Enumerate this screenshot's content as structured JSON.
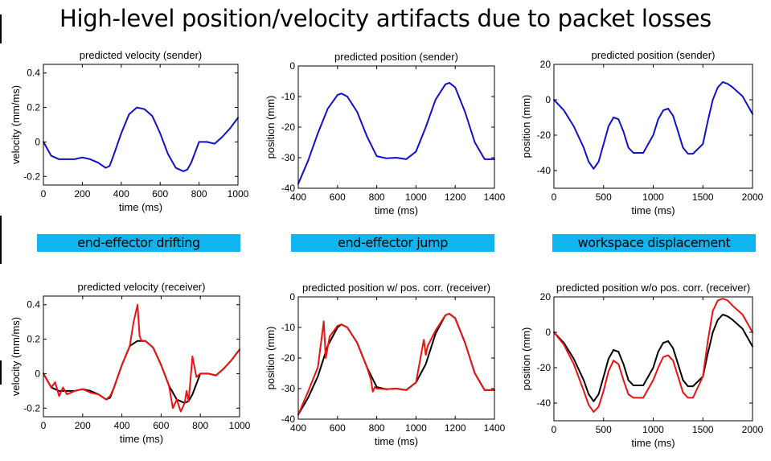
{
  "title": "High-level position/velocity artifacts due to packet losses",
  "banners": [
    "end-effector drifting",
    "end-effector jump",
    "workspace displacement"
  ],
  "colors": {
    "sender": "#1010cc",
    "receiver": "#ee1111",
    "reference": "#000000",
    "banner": "#10b4ee"
  },
  "chart_data": [
    {
      "type": "line",
      "title": "predicted velocity (sender)",
      "xlabel": "time (ms)",
      "ylabel": "velocity (mm/ms)",
      "xlim": [
        0,
        1000
      ],
      "ylim": [
        -0.25,
        0.45
      ],
      "xticks": [
        0,
        200,
        400,
        600,
        800,
        1000
      ],
      "yticks": [
        -0.2,
        0,
        0.2,
        0.4
      ],
      "series": [
        {
          "color": "blue",
          "x": [
            0,
            40,
            80,
            120,
            160,
            200,
            240,
            280,
            320,
            340,
            360,
            400,
            440,
            480,
            520,
            560,
            600,
            640,
            680,
            720,
            740,
            760,
            800,
            840,
            880,
            920,
            960,
            1000
          ],
          "y": [
            0,
            -0.08,
            -0.1,
            -0.1,
            -0.1,
            -0.09,
            -0.1,
            -0.12,
            -0.15,
            -0.14,
            -0.08,
            0.05,
            0.16,
            0.2,
            0.19,
            0.15,
            0.05,
            -0.07,
            -0.15,
            -0.17,
            -0.16,
            -0.12,
            0,
            0,
            -0.01,
            0.03,
            0.08,
            0.14
          ]
        }
      ]
    },
    {
      "type": "line",
      "title": "predicted position (sender)",
      "xlabel": "time (ms)",
      "ylabel": "position (mm)",
      "xlim": [
        400,
        1400
      ],
      "ylim": [
        -40,
        0
      ],
      "xticks": [
        400,
        600,
        800,
        1000,
        1200,
        1400
      ],
      "yticks": [
        -40,
        -30,
        -20,
        -10,
        0
      ],
      "series": [
        {
          "color": "blue",
          "x": [
            400,
            450,
            500,
            550,
            600,
            620,
            650,
            700,
            750,
            800,
            850,
            900,
            950,
            1000,
            1050,
            1100,
            1150,
            1170,
            1200,
            1250,
            1300,
            1350,
            1400
          ],
          "y": [
            -38.5,
            -31,
            -22,
            -14,
            -9.5,
            -9,
            -10,
            -15,
            -23,
            -29.5,
            -30.2,
            -30,
            -30.5,
            -28,
            -20,
            -11,
            -6,
            -5.5,
            -7,
            -15,
            -25,
            -30.5,
            -30.5
          ]
        }
      ]
    },
    {
      "type": "line",
      "title": "predicted position (sender)",
      "xlabel": "time (ms)",
      "ylabel": "position (mm)",
      "xlim": [
        0,
        2000
      ],
      "ylim": [
        -50,
        20
      ],
      "xticks": [
        0,
        500,
        1000,
        1500,
        2000
      ],
      "yticks": [
        -40,
        -20,
        0,
        20
      ],
      "series": [
        {
          "color": "blue",
          "x": [
            0,
            100,
            200,
            300,
            350,
            400,
            450,
            500,
            550,
            600,
            650,
            700,
            750,
            800,
            900,
            1000,
            1050,
            1100,
            1150,
            1200,
            1250,
            1300,
            1350,
            1400,
            1500,
            1550,
            1600,
            1650,
            1700,
            1750,
            1800,
            1900,
            2000
          ],
          "y": [
            0,
            -6,
            -15,
            -27,
            -35,
            -39,
            -35,
            -25,
            -15,
            -10,
            -11,
            -18,
            -27,
            -30,
            -30,
            -20,
            -11,
            -6,
            -5,
            -9,
            -18,
            -27,
            -30.5,
            -30.5,
            -25,
            -12,
            0,
            7,
            10,
            9,
            7,
            2,
            -8
          ]
        }
      ]
    },
    {
      "type": "line",
      "title": "predicted velocity (receiver)",
      "xlabel": "time (ms)",
      "ylabel": "velocity (mm/ms)",
      "xlim": [
        0,
        1000
      ],
      "ylim": [
        -0.25,
        0.45
      ],
      "xticks": [
        0,
        200,
        400,
        600,
        800,
        1000
      ],
      "yticks": [
        -0.2,
        0,
        0.2,
        0.4
      ],
      "series": [
        {
          "color": "black",
          "x": [
            0,
            40,
            80,
            120,
            160,
            200,
            240,
            280,
            320,
            340,
            360,
            400,
            440,
            480,
            520,
            560,
            600,
            640,
            680,
            720,
            740,
            760,
            800,
            840,
            880,
            920,
            960,
            1000
          ],
          "y": [
            0,
            -0.08,
            -0.1,
            -0.1,
            -0.1,
            -0.09,
            -0.1,
            -0.12,
            -0.15,
            -0.14,
            -0.08,
            0.05,
            0.16,
            0.19,
            0.19,
            0.15,
            0.05,
            -0.07,
            -0.15,
            -0.17,
            -0.16,
            -0.12,
            0,
            0,
            -0.01,
            0.03,
            0.08,
            0.14
          ]
        },
        {
          "color": "red",
          "x": [
            0,
            40,
            60,
            80,
            100,
            120,
            160,
            200,
            240,
            280,
            320,
            340,
            360,
            400,
            440,
            460,
            480,
            490,
            500,
            520,
            560,
            600,
            640,
            660,
            680,
            700,
            720,
            730,
            740,
            760,
            780,
            800,
            840,
            880,
            920,
            960,
            1000
          ],
          "y": [
            0,
            -0.08,
            -0.05,
            -0.13,
            -0.08,
            -0.12,
            -0.1,
            -0.09,
            -0.11,
            -0.12,
            -0.15,
            -0.13,
            -0.08,
            0.05,
            0.16,
            0.3,
            0.4,
            0.22,
            0.19,
            0.19,
            0.15,
            0.05,
            -0.07,
            -0.2,
            -0.15,
            -0.22,
            -0.17,
            -0.1,
            -0.16,
            0.1,
            -0.02,
            0,
            0,
            -0.01,
            0.03,
            0.08,
            0.14
          ]
        }
      ]
    },
    {
      "type": "line",
      "title": "predicted position w/ pos. corr. (receiver)",
      "xlabel": "time (ms)",
      "ylabel": "position (mm)",
      "xlim": [
        400,
        1400
      ],
      "ylim": [
        -40,
        0
      ],
      "xticks": [
        400,
        600,
        800,
        1000,
        1200,
        1400
      ],
      "yticks": [
        -40,
        -30,
        -20,
        -10,
        0
      ],
      "series": [
        {
          "color": "black",
          "x": [
            400,
            450,
            500,
            550,
            600,
            620,
            650,
            700,
            750,
            800,
            850,
            900,
            950,
            1000,
            1050,
            1100,
            1150,
            1170,
            1200,
            1250,
            1300,
            1350,
            1400
          ],
          "y": [
            -38.5,
            -33,
            -26,
            -16,
            -10,
            -9,
            -10,
            -15,
            -23,
            -29.5,
            -30.2,
            -30,
            -30.5,
            -28,
            -22,
            -12,
            -6,
            -5.5,
            -7,
            -15,
            -25,
            -30.5,
            -30.5
          ]
        },
        {
          "color": "red",
          "x": [
            400,
            450,
            500,
            530,
            540,
            560,
            600,
            620,
            650,
            700,
            750,
            770,
            780,
            790,
            800,
            850,
            900,
            950,
            1000,
            1040,
            1050,
            1060,
            1100,
            1150,
            1170,
            1200,
            1250,
            1300,
            1350,
            1400
          ],
          "y": [
            -38.5,
            -31,
            -23,
            -8,
            -20,
            -13,
            -9.5,
            -9,
            -10,
            -15,
            -23,
            -27,
            -31,
            -29.5,
            -30,
            -30.2,
            -30,
            -30.5,
            -28,
            -14,
            -19,
            -16,
            -11,
            -6,
            -5.5,
            -7,
            -15,
            -25,
            -30.5,
            -30.5
          ]
        }
      ]
    },
    {
      "type": "line",
      "title": "predicted position w/o pos. corr. (receiver)",
      "xlabel": "time (ms)",
      "ylabel": "position (mm)",
      "xlim": [
        0,
        2000
      ],
      "ylim": [
        -50,
        20
      ],
      "xticks": [
        0,
        500,
        1000,
        1500,
        2000
      ],
      "yticks": [
        -40,
        -20,
        0,
        20
      ],
      "series": [
        {
          "color": "black",
          "x": [
            0,
            100,
            200,
            300,
            350,
            400,
            450,
            500,
            550,
            600,
            650,
            700,
            750,
            800,
            900,
            1000,
            1050,
            1100,
            1150,
            1200,
            1250,
            1300,
            1350,
            1400,
            1500,
            1550,
            1600,
            1650,
            1700,
            1750,
            1800,
            1900,
            2000
          ],
          "y": [
            0,
            -6,
            -15,
            -27,
            -35,
            -39,
            -35,
            -25,
            -15,
            -10,
            -11,
            -18,
            -27,
            -30,
            -30,
            -20,
            -11,
            -6,
            -5,
            -9,
            -18,
            -27,
            -30.5,
            -30.5,
            -25,
            -12,
            0,
            7,
            10,
            9,
            7,
            2,
            -8
          ]
        },
        {
          "color": "red",
          "x": [
            0,
            100,
            200,
            300,
            350,
            400,
            450,
            500,
            550,
            600,
            650,
            700,
            750,
            800,
            900,
            1000,
            1050,
            1100,
            1150,
            1200,
            1250,
            1300,
            1350,
            1400,
            1500,
            1550,
            1600,
            1650,
            1700,
            1750,
            1800,
            1900,
            2000
          ],
          "y": [
            0,
            -7,
            -18,
            -33,
            -41,
            -45,
            -42,
            -33,
            -22,
            -16,
            -18,
            -27,
            -35,
            -37,
            -37,
            -27,
            -20,
            -14,
            -13,
            -16,
            -25,
            -34,
            -37,
            -37,
            -25,
            -5,
            12,
            18,
            19,
            18,
            15,
            10,
            0
          ]
        }
      ]
    }
  ]
}
